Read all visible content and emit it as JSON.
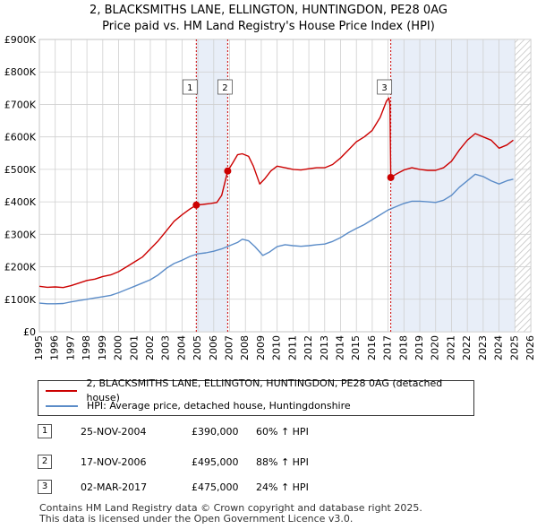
{
  "header": {
    "line1": "2, BLACKSMITHS LANE, ELLINGTON, HUNTINGDON, PE28 0AG",
    "line2": "Price paid vs. HM Land Registry's House Price Index (HPI)"
  },
  "chart_data": {
    "type": "line",
    "title": "2, BLACKSMITHS LANE, ELLINGTON, HUNTINGDON, PE28 0AG",
    "subtitle": "Price paid vs. HM Land Registry's House Price Index (HPI)",
    "xlabel": "",
    "ylabel": "",
    "xlim": [
      1995,
      2026
    ],
    "ylim": [
      0,
      900000
    ],
    "x_ticks": [
      1995,
      1996,
      1997,
      1998,
      1999,
      2000,
      2001,
      2002,
      2003,
      2004,
      2005,
      2006,
      2007,
      2008,
      2009,
      2010,
      2011,
      2012,
      2013,
      2014,
      2015,
      2016,
      2017,
      2018,
      2019,
      2020,
      2021,
      2022,
      2023,
      2024,
      2025,
      2026
    ],
    "y_ticks": [
      {
        "value": 0,
        "label": "£0"
      },
      {
        "value": 100000,
        "label": "£100K"
      },
      {
        "value": 200000,
        "label": "£200K"
      },
      {
        "value": 300000,
        "label": "£300K"
      },
      {
        "value": 400000,
        "label": "£400K"
      },
      {
        "value": 500000,
        "label": "£500K"
      },
      {
        "value": 600000,
        "label": "£600K"
      },
      {
        "value": 700000,
        "label": "£700K"
      },
      {
        "value": 800000,
        "label": "£800K"
      },
      {
        "value": 900000,
        "label": "£900K"
      }
    ],
    "grid": true,
    "background_color": "#e8eef8",
    "shaded_periods": [
      {
        "from": 2004.9,
        "to": 2006.88
      },
      {
        "from": 2017.17,
        "to": 2026
      },
      {
        "from": 2025.0,
        "to": 2026,
        "hatched": true
      }
    ],
    "series": [
      {
        "name": "2, BLACKSMITHS LANE, ELLINGTON, HUNTINGDON, PE28 0AG (detached house)",
        "color": "#cc0000",
        "points": [
          [
            1995.0,
            140000
          ],
          [
            1995.5,
            137000
          ],
          [
            1996.0,
            138000
          ],
          [
            1996.5,
            136000
          ],
          [
            1997.0,
            142000
          ],
          [
            1997.5,
            150000
          ],
          [
            1998.0,
            158000
          ],
          [
            1998.5,
            162000
          ],
          [
            1999.0,
            170000
          ],
          [
            1999.5,
            175000
          ],
          [
            2000.0,
            185000
          ],
          [
            2000.5,
            200000
          ],
          [
            2001.0,
            215000
          ],
          [
            2001.5,
            230000
          ],
          [
            2002.0,
            255000
          ],
          [
            2002.5,
            280000
          ],
          [
            2003.0,
            310000
          ],
          [
            2003.5,
            340000
          ],
          [
            2004.0,
            360000
          ],
          [
            2004.5,
            378000
          ],
          [
            2004.9,
            390000
          ],
          [
            2005.3,
            392000
          ],
          [
            2005.8,
            395000
          ],
          [
            2006.2,
            398000
          ],
          [
            2006.5,
            420000
          ],
          [
            2006.88,
            495000
          ],
          [
            2007.2,
            520000
          ],
          [
            2007.5,
            545000
          ],
          [
            2007.8,
            548000
          ],
          [
            2008.2,
            540000
          ],
          [
            2008.5,
            510000
          ],
          [
            2008.9,
            455000
          ],
          [
            2009.2,
            470000
          ],
          [
            2009.6,
            495000
          ],
          [
            2010.0,
            510000
          ],
          [
            2010.5,
            505000
          ],
          [
            2011.0,
            500000
          ],
          [
            2011.5,
            498000
          ],
          [
            2012.0,
            502000
          ],
          [
            2012.5,
            505000
          ],
          [
            2013.0,
            505000
          ],
          [
            2013.5,
            515000
          ],
          [
            2014.0,
            535000
          ],
          [
            2014.5,
            560000
          ],
          [
            2015.0,
            585000
          ],
          [
            2015.5,
            600000
          ],
          [
            2016.0,
            620000
          ],
          [
            2016.5,
            660000
          ],
          [
            2016.9,
            710000
          ],
          [
            2017.05,
            720000
          ],
          [
            2017.12,
            700000
          ],
          [
            2017.17,
            475000
          ],
          [
            2017.5,
            485000
          ],
          [
            2018.0,
            498000
          ],
          [
            2018.5,
            505000
          ],
          [
            2019.0,
            500000
          ],
          [
            2019.5,
            497000
          ],
          [
            2020.0,
            497000
          ],
          [
            2020.5,
            505000
          ],
          [
            2021.0,
            525000
          ],
          [
            2021.5,
            560000
          ],
          [
            2022.0,
            590000
          ],
          [
            2022.5,
            610000
          ],
          [
            2023.0,
            600000
          ],
          [
            2023.5,
            590000
          ],
          [
            2024.0,
            565000
          ],
          [
            2024.5,
            575000
          ],
          [
            2024.9,
            590000
          ]
        ]
      },
      {
        "name": "HPI: Average price, detached house, Huntingdonshire",
        "color": "#5b8cc8",
        "points": [
          [
            1995.0,
            88000
          ],
          [
            1995.5,
            86000
          ],
          [
            1996.0,
            86000
          ],
          [
            1996.5,
            87000
          ],
          [
            1997.0,
            92000
          ],
          [
            1997.5,
            96000
          ],
          [
            1998.0,
            100000
          ],
          [
            1998.5,
            104000
          ],
          [
            1999.0,
            108000
          ],
          [
            1999.5,
            112000
          ],
          [
            2000.0,
            120000
          ],
          [
            2000.5,
            130000
          ],
          [
            2001.0,
            140000
          ],
          [
            2001.5,
            150000
          ],
          [
            2002.0,
            160000
          ],
          [
            2002.5,
            175000
          ],
          [
            2003.0,
            195000
          ],
          [
            2003.5,
            210000
          ],
          [
            2004.0,
            220000
          ],
          [
            2004.5,
            232000
          ],
          [
            2005.0,
            240000
          ],
          [
            2005.5,
            243000
          ],
          [
            2006.0,
            248000
          ],
          [
            2006.5,
            255000
          ],
          [
            2007.0,
            265000
          ],
          [
            2007.5,
            275000
          ],
          [
            2007.8,
            285000
          ],
          [
            2008.2,
            280000
          ],
          [
            2008.6,
            262000
          ],
          [
            2009.1,
            235000
          ],
          [
            2009.5,
            245000
          ],
          [
            2010.0,
            262000
          ],
          [
            2010.5,
            268000
          ],
          [
            2011.0,
            265000
          ],
          [
            2011.5,
            263000
          ],
          [
            2012.0,
            265000
          ],
          [
            2012.5,
            268000
          ],
          [
            2013.0,
            270000
          ],
          [
            2013.5,
            278000
          ],
          [
            2014.0,
            290000
          ],
          [
            2014.5,
            305000
          ],
          [
            2015.0,
            318000
          ],
          [
            2015.5,
            330000
          ],
          [
            2016.0,
            345000
          ],
          [
            2016.5,
            360000
          ],
          [
            2017.0,
            375000
          ],
          [
            2017.5,
            385000
          ],
          [
            2018.0,
            395000
          ],
          [
            2018.5,
            402000
          ],
          [
            2019.0,
            402000
          ],
          [
            2019.5,
            400000
          ],
          [
            2020.0,
            398000
          ],
          [
            2020.5,
            405000
          ],
          [
            2021.0,
            420000
          ],
          [
            2021.5,
            445000
          ],
          [
            2022.0,
            465000
          ],
          [
            2022.5,
            485000
          ],
          [
            2023.0,
            478000
          ],
          [
            2023.5,
            465000
          ],
          [
            2024.0,
            455000
          ],
          [
            2024.5,
            465000
          ],
          [
            2024.9,
            470000
          ]
        ]
      }
    ],
    "sale_markers": [
      {
        "label": "1",
        "x": 2004.9,
        "y": 390000
      },
      {
        "label": "2",
        "x": 2006.88,
        "y": 495000
      },
      {
        "label": "3",
        "x": 2017.17,
        "y": 475000
      }
    ],
    "legend": {
      "placement": "below",
      "entries": [
        {
          "label": "2, BLACKSMITHS LANE, ELLINGTON, HUNTINGDON, PE28 0AG (detached house)",
          "color": "#cc0000"
        },
        {
          "label": "HPI: Average price, detached house, Huntingdonshire",
          "color": "#5b8cc8"
        }
      ]
    }
  },
  "sales": [
    {
      "num": "1",
      "date": "25-NOV-2004",
      "price": "£390,000",
      "hpi": "60% ↑ HPI"
    },
    {
      "num": "2",
      "date": "17-NOV-2006",
      "price": "£495,000",
      "hpi": "88% ↑ HPI"
    },
    {
      "num": "3",
      "date": "02-MAR-2017",
      "price": "£475,000",
      "hpi": "24% ↑ HPI"
    }
  ],
  "footer": {
    "line1": "Contains HM Land Registry data © Crown copyright and database right 2025.",
    "line2": "This data is licensed under the Open Government Licence v3.0."
  }
}
